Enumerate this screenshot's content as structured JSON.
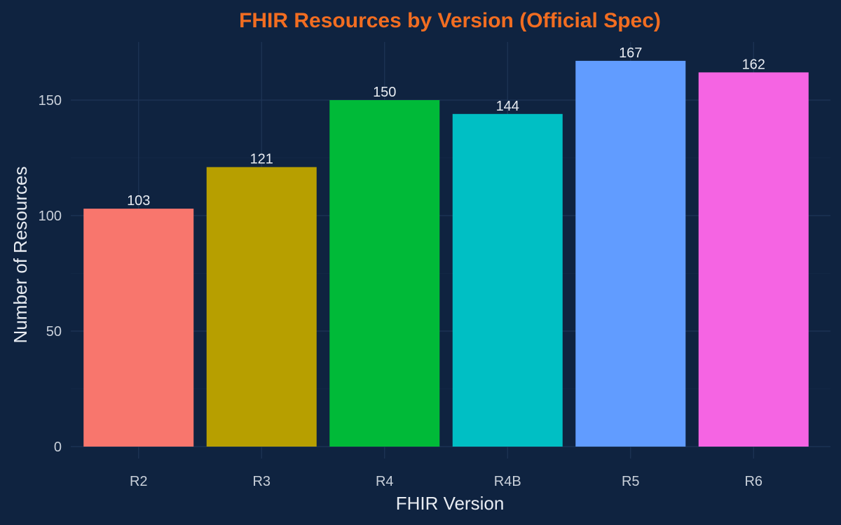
{
  "chart_data": {
    "type": "bar",
    "title": "FHIR Resources by Version (Official Spec)",
    "xlabel": "FHIR Version",
    "ylabel": "Number of Resources",
    "categories": [
      "R2",
      "R3",
      "R4",
      "R4B",
      "R5",
      "R6"
    ],
    "values": [
      103,
      121,
      150,
      144,
      167,
      162
    ],
    "data_labels": [
      "103",
      "121",
      "150",
      "144",
      "167",
      "162"
    ],
    "ylim": [
      0,
      175
    ],
    "yticks": [
      0,
      50,
      100,
      150
    ],
    "ytick_labels": [
      "0",
      "50",
      "100",
      "150"
    ],
    "grid": true,
    "legend": "none"
  },
  "colors": {
    "background": "#0f2340",
    "grid": "#1f3656",
    "title": "#f26d21",
    "text": "#e8ecf2",
    "tick_text": "#c9d0da",
    "bars": [
      "#f8766d",
      "#b79f00",
      "#00ba38",
      "#00bfc4",
      "#619cff",
      "#f564e3"
    ]
  }
}
